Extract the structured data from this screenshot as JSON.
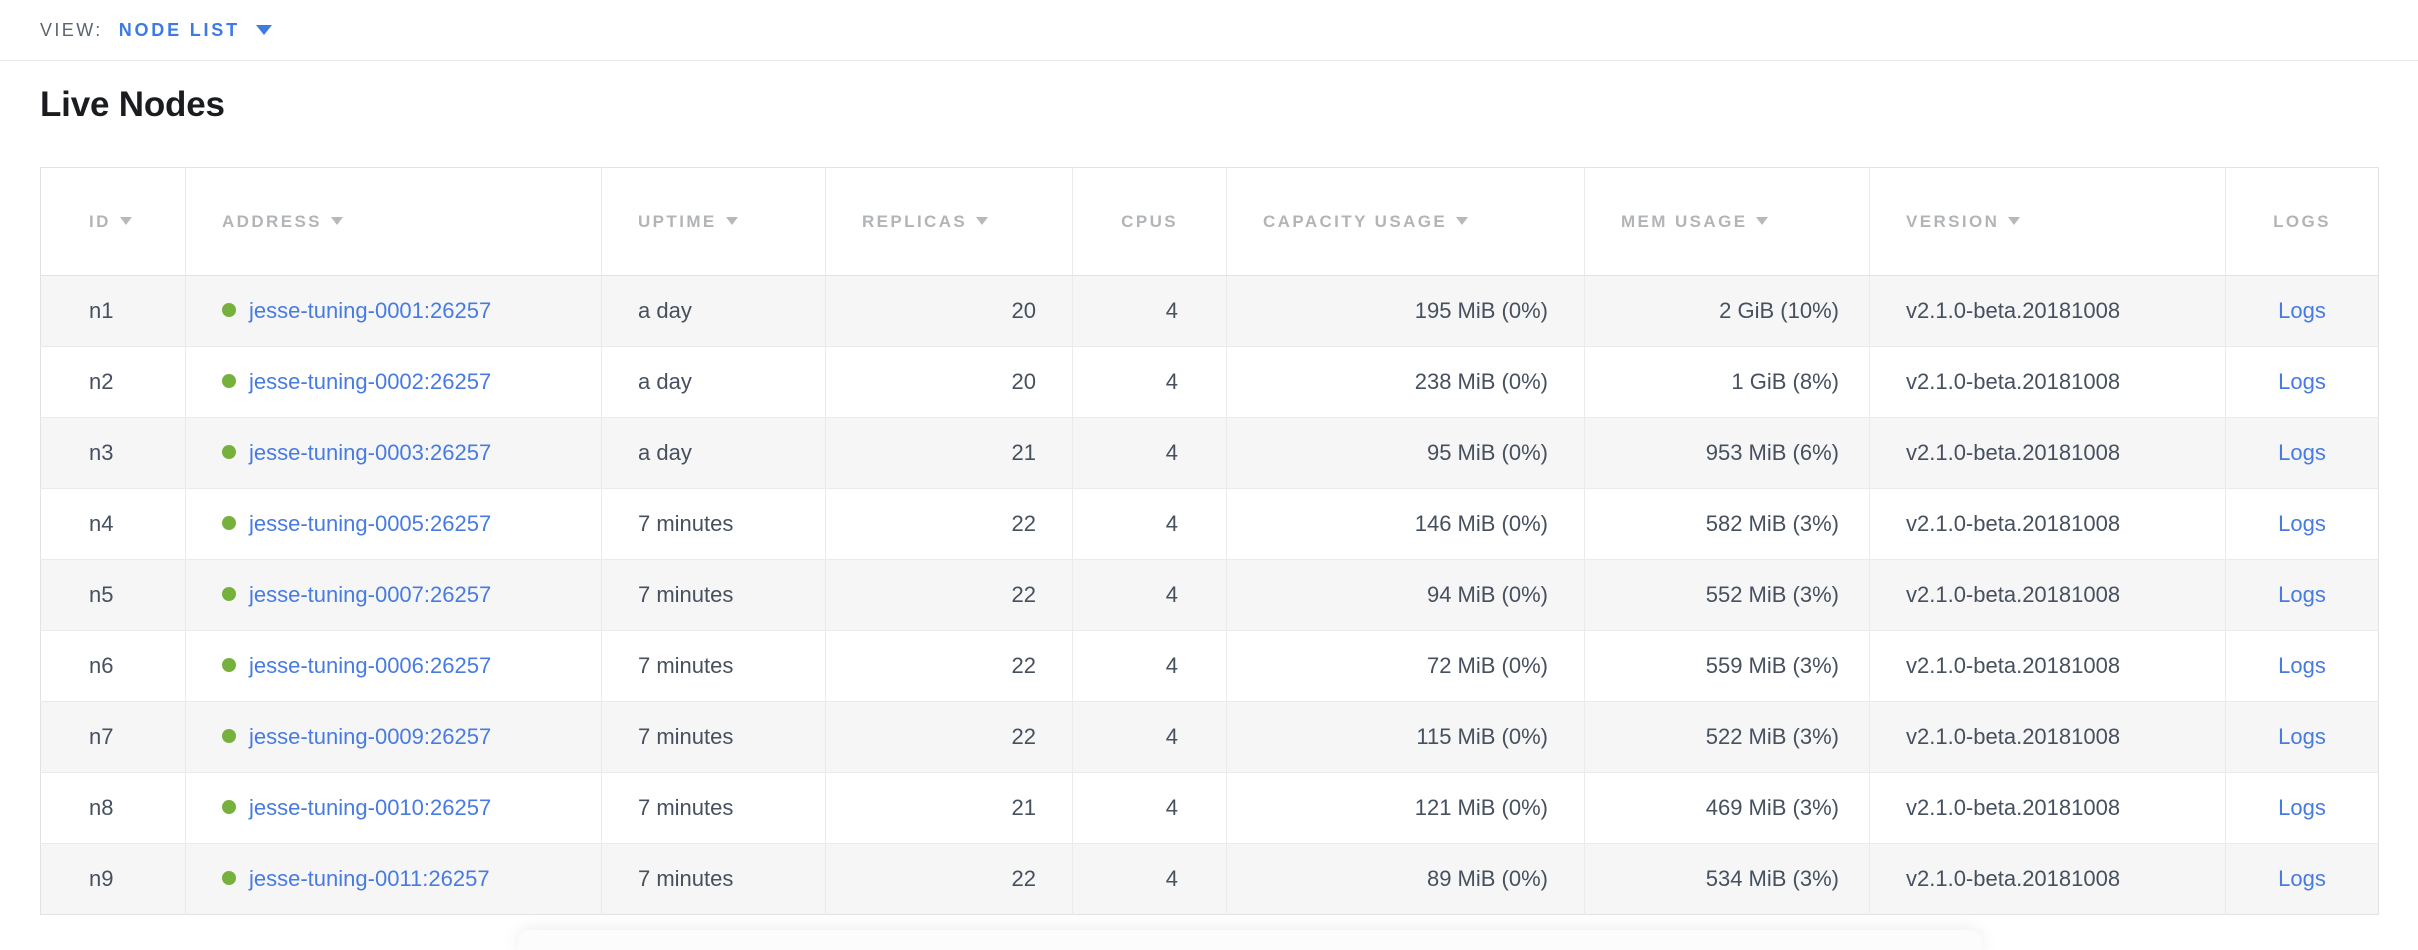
{
  "view_bar": {
    "label": "VIEW:",
    "selected": "NODE LIST",
    "chevron_icon": "chevron-down"
  },
  "page": {
    "title": "Live Nodes"
  },
  "table": {
    "columns": [
      {
        "key": "id",
        "label": "ID",
        "sortable": true,
        "align": "left",
        "header_align": "left"
      },
      {
        "key": "address",
        "label": "ADDRESS",
        "sortable": true,
        "align": "left",
        "header_align": "left"
      },
      {
        "key": "uptime",
        "label": "UPTIME",
        "sortable": true,
        "align": "left",
        "header_align": "left"
      },
      {
        "key": "replicas",
        "label": "REPLICAS",
        "sortable": true,
        "align": "right",
        "header_align": "left"
      },
      {
        "key": "cpus",
        "label": "CPUS",
        "sortable": false,
        "align": "right",
        "header_align": "right"
      },
      {
        "key": "capacity",
        "label": "CAPACITY USAGE",
        "sortable": true,
        "align": "right",
        "header_align": "left"
      },
      {
        "key": "mem",
        "label": "MEM USAGE",
        "sortable": true,
        "align": "right",
        "header_align": "left"
      },
      {
        "key": "version",
        "label": "VERSION",
        "sortable": true,
        "align": "left",
        "header_align": "left"
      },
      {
        "key": "logs",
        "label": "LOGS",
        "sortable": false,
        "align": "center",
        "header_align": "center"
      }
    ],
    "rows": [
      {
        "id": "n1",
        "status": "live",
        "address": "jesse-tuning-0001:26257",
        "uptime": "a day",
        "replicas": "20",
        "cpus": "4",
        "capacity": "195 MiB (0%)",
        "mem": "2 GiB (10%)",
        "version": "v2.1.0-beta.20181008",
        "logs": "Logs"
      },
      {
        "id": "n2",
        "status": "live",
        "address": "jesse-tuning-0002:26257",
        "uptime": "a day",
        "replicas": "20",
        "cpus": "4",
        "capacity": "238 MiB (0%)",
        "mem": "1 GiB (8%)",
        "version": "v2.1.0-beta.20181008",
        "logs": "Logs"
      },
      {
        "id": "n3",
        "status": "live",
        "address": "jesse-tuning-0003:26257",
        "uptime": "a day",
        "replicas": "21",
        "cpus": "4",
        "capacity": "95 MiB (0%)",
        "mem": "953 MiB (6%)",
        "version": "v2.1.0-beta.20181008",
        "logs": "Logs"
      },
      {
        "id": "n4",
        "status": "live",
        "address": "jesse-tuning-0005:26257",
        "uptime": "7 minutes",
        "replicas": "22",
        "cpus": "4",
        "capacity": "146 MiB (0%)",
        "mem": "582 MiB (3%)",
        "version": "v2.1.0-beta.20181008",
        "logs": "Logs"
      },
      {
        "id": "n5",
        "status": "live",
        "address": "jesse-tuning-0007:26257",
        "uptime": "7 minutes",
        "replicas": "22",
        "cpus": "4",
        "capacity": "94 MiB (0%)",
        "mem": "552 MiB (3%)",
        "version": "v2.1.0-beta.20181008",
        "logs": "Logs"
      },
      {
        "id": "n6",
        "status": "live",
        "address": "jesse-tuning-0006:26257",
        "uptime": "7 minutes",
        "replicas": "22",
        "cpus": "4",
        "capacity": "72 MiB (0%)",
        "mem": "559 MiB (3%)",
        "version": "v2.1.0-beta.20181008",
        "logs": "Logs"
      },
      {
        "id": "n7",
        "status": "live",
        "address": "jesse-tuning-0009:26257",
        "uptime": "7 minutes",
        "replicas": "22",
        "cpus": "4",
        "capacity": "115 MiB (0%)",
        "mem": "522 MiB (3%)",
        "version": "v2.1.0-beta.20181008",
        "logs": "Logs"
      },
      {
        "id": "n8",
        "status": "live",
        "address": "jesse-tuning-0010:26257",
        "uptime": "7 minutes",
        "replicas": "21",
        "cpus": "4",
        "capacity": "121 MiB (0%)",
        "mem": "469 MiB (3%)",
        "version": "v2.1.0-beta.20181008",
        "logs": "Logs"
      },
      {
        "id": "n9",
        "status": "live",
        "address": "jesse-tuning-0011:26257",
        "uptime": "7 minutes",
        "replicas": "22",
        "cpus": "4",
        "capacity": "89 MiB (0%)",
        "mem": "534 MiB (3%)",
        "version": "v2.1.0-beta.20181008",
        "logs": "Logs"
      }
    ]
  },
  "icons": {
    "sort": "triangle-down",
    "live_status": "green-dot",
    "view_dropdown": "chevron-down"
  },
  "colors": {
    "link": "#477be2",
    "view_accent": "#3d7be3",
    "live_dot": "#76b13d",
    "header_text": "#b2b5b8",
    "cell_text": "#46505e",
    "row_alt": "#f6f6f7",
    "border": "#ebebeb"
  }
}
